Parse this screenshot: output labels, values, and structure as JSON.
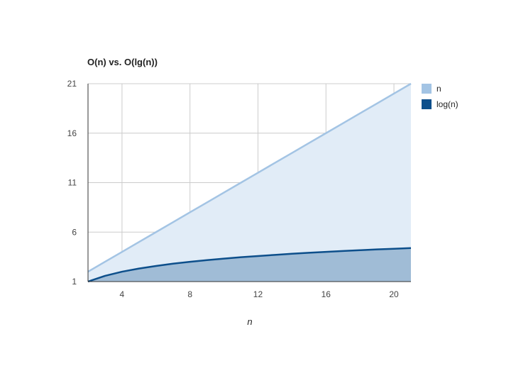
{
  "chart_data": {
    "type": "area",
    "title": "O(n) vs. O(lg(n))",
    "xlabel": "n",
    "ylabel": "",
    "xlim": [
      2,
      21
    ],
    "ylim": [
      1,
      21
    ],
    "xticks": [
      4,
      8,
      12,
      16,
      20
    ],
    "yticks": [
      1,
      6,
      11,
      16,
      21
    ],
    "grid": true,
    "legend_position": "right",
    "x": [
      2,
      3,
      4,
      5,
      6,
      7,
      8,
      9,
      10,
      11,
      12,
      13,
      14,
      15,
      16,
      17,
      18,
      19,
      20,
      21
    ],
    "series": [
      {
        "name": "n",
        "color": "#a3c4e4",
        "fill": "#e1ecf7",
        "values": [
          2,
          3,
          4,
          5,
          6,
          7,
          8,
          9,
          10,
          11,
          12,
          13,
          14,
          15,
          16,
          17,
          18,
          19,
          20,
          21
        ]
      },
      {
        "name": "log(n)",
        "color": "#0d4f8b",
        "fill": "#a0bcd6",
        "values": [
          1,
          1.58,
          2,
          2.32,
          2.58,
          2.81,
          3,
          3.17,
          3.32,
          3.46,
          3.58,
          3.7,
          3.81,
          3.91,
          4,
          4.09,
          4.17,
          4.25,
          4.32,
          4.39
        ]
      }
    ]
  }
}
